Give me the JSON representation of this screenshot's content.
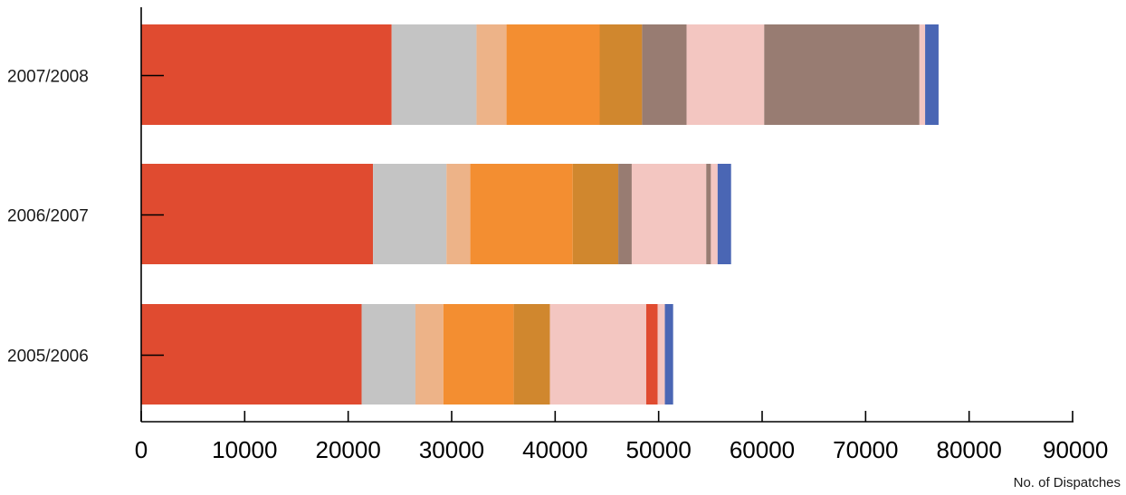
{
  "chart_data": {
    "type": "bar",
    "orientation": "horizontal",
    "stacked": true,
    "categories": [
      "2007/2008",
      "2006/2007",
      "2005/2006"
    ],
    "xlabel": "No. of Dispatches",
    "ylabel": "",
    "xlim": [
      0,
      90000
    ],
    "xticks": [
      "0",
      "10000",
      "20000",
      "30000",
      "40000",
      "50000",
      "60000",
      "70000",
      "80000",
      "90000"
    ],
    "grid": false,
    "legend": "none",
    "colors": [
      "#e04b30",
      "#c4c4c4",
      "#edb388",
      "#f38e31",
      "#d0872e",
      "#987c72",
      "#f3c6c1",
      "#987c72",
      "#e04b30",
      "#f3c6c1",
      "#4a66b4"
    ],
    "series": [
      {
        "values": [
          24200,
          22400,
          21300
        ]
      },
      {
        "values": [
          8200,
          7100,
          5200
        ]
      },
      {
        "values": [
          2900,
          2300,
          2700
        ]
      },
      {
        "values": [
          9000,
          9900,
          6800
        ]
      },
      {
        "values": [
          4100,
          4400,
          3500
        ]
      },
      {
        "values": [
          4300,
          1300,
          0
        ]
      },
      {
        "values": [
          7500,
          7200,
          9300
        ]
      },
      {
        "values": [
          15000,
          450,
          0
        ]
      },
      {
        "values": [
          0,
          0,
          1100
        ]
      },
      {
        "values": [
          550,
          650,
          700
        ]
      },
      {
        "values": [
          1300,
          1300,
          800
        ]
      }
    ]
  }
}
